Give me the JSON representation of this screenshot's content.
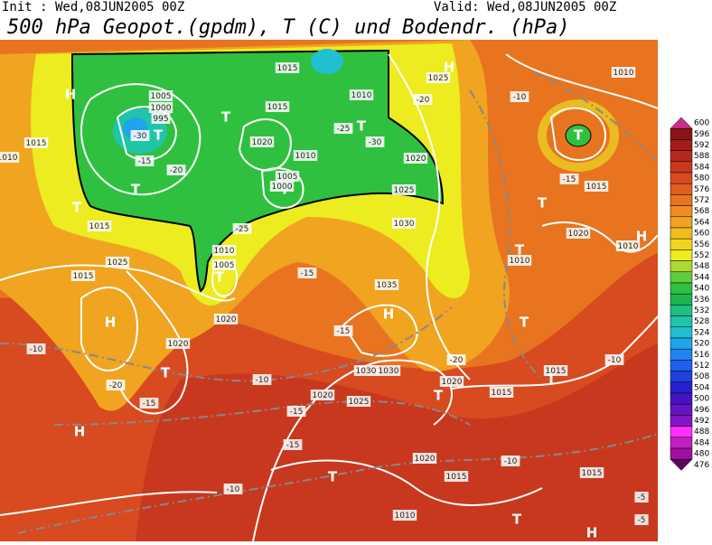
{
  "header": {
    "init": "Init : Wed,08JUN2005 00Z",
    "valid": "Valid: Wed,08JUN2005 00Z",
    "title": "500 hPa Geopot.(gpdm), T (C) und Bodendr. (hPa)"
  },
  "colorbar": {
    "levels": [
      600,
      596,
      592,
      588,
      584,
      580,
      576,
      572,
      568,
      564,
      560,
      556,
      552,
      548,
      544,
      540,
      536,
      532,
      528,
      524,
      520,
      516,
      512,
      508,
      504,
      500,
      496,
      492,
      488,
      484,
      480,
      476
    ],
    "colors": [
      "#d02a8a",
      "#8c1414",
      "#a21c1a",
      "#b6281c",
      "#c8381e",
      "#d84a20",
      "#e05e20",
      "#e87420",
      "#f08c20",
      "#f0a420",
      "#f0bc20",
      "#f0d420",
      "#ecec20",
      "#a8dc30",
      "#60cc40",
      "#30c040",
      "#20b450",
      "#20c080",
      "#20c4a8",
      "#20c0d0",
      "#20a4ec",
      "#2084f0",
      "#2060f0",
      "#2040e0",
      "#2420d0",
      "#4414c4",
      "#6414c4",
      "#8414c8",
      "#ff30ff",
      "#c020c0",
      "#a010a0",
      "#600060"
    ]
  },
  "pressure_centers": [
    "H",
    "H",
    "H",
    "H",
    "H",
    "H",
    "H",
    "T",
    "T",
    "T",
    "T",
    "T",
    "T",
    "T",
    "T",
    "T",
    "T",
    "T",
    "T",
    "T",
    "T",
    "T",
    "T"
  ],
  "contour_labels": [
    "1015",
    "1005",
    "1000",
    "995",
    "1010",
    "1015",
    "1020",
    "1010",
    "1005",
    "1000",
    "1025",
    "1010",
    "1015",
    "1010",
    "1020",
    "1025",
    "1030",
    "1010",
    "1005",
    "1015",
    "1020",
    "1025",
    "1020",
    "1035",
    "1030",
    "1030",
    "1020",
    "1025",
    "1020",
    "1015",
    "1015",
    "1015",
    "1020",
    "1015",
    "1015",
    "1020",
    "1010",
    "1010",
    "1015",
    "1010",
    "-30",
    "-25",
    "-20",
    "-15",
    "-25",
    "-30",
    "-20",
    "-15",
    "-10",
    "-15",
    "-20",
    "-15",
    "-10",
    "-15",
    "-10",
    "-20",
    "-15",
    "-10",
    "-5",
    "-5",
    "-10",
    "-15",
    "-10"
  ]
}
